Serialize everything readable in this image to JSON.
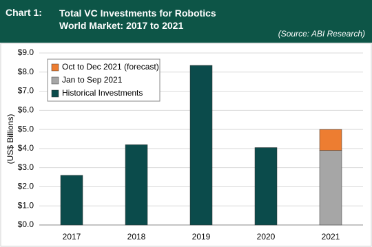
{
  "header": {
    "label": "Chart 1:",
    "source": "(Source: ABI Research)"
  },
  "chart_data": {
    "type": "stacked-bar",
    "title": "Total VC Investments for Robotics World Market: 2017 to 2021",
    "y_label": "(US$ Billions)",
    "categories": [
      "2017",
      "2018",
      "2019",
      "2020",
      "2021"
    ],
    "series": [
      {
        "name": "Historical Investments",
        "color": "#0b4b4b",
        "values": [
          2.6,
          4.2,
          8.35,
          4.05,
          null
        ]
      },
      {
        "name": "Jan to Sep 2021",
        "color": "#a6a6a6",
        "values": [
          null,
          null,
          null,
          null,
          3.9
        ]
      },
      {
        "name": "Oct to Dec 2021 (forecast)",
        "color": "#ed7d31",
        "values": [
          null,
          null,
          null,
          null,
          1.1
        ]
      }
    ],
    "ylim": [
      0,
      9
    ],
    "yticks": [
      {
        "value": 0,
        "label": "$0.0"
      },
      {
        "value": 1,
        "label": "$1.0"
      },
      {
        "value": 2,
        "label": "$2.0"
      },
      {
        "value": 3,
        "label": "$3.0"
      },
      {
        "value": 4,
        "label": "$4.0"
      },
      {
        "value": 5,
        "label": "$5.0"
      },
      {
        "value": 6,
        "label": "$6.0"
      },
      {
        "value": 7,
        "label": "$7.0"
      },
      {
        "value": 8,
        "label": "$8.0"
      },
      {
        "value": 9,
        "label": "$9.0"
      }
    ],
    "grid": true,
    "legend": "top-left"
  }
}
